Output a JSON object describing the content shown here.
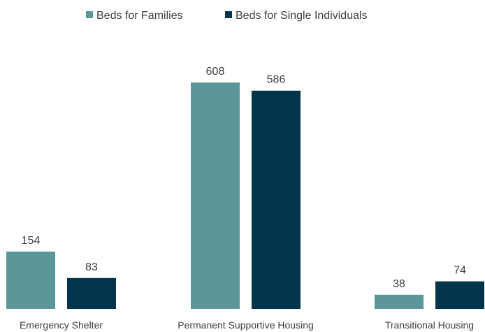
{
  "chart_data": {
    "type": "bar",
    "categories": [
      "Emergency Shelter",
      "Permanent Supportive Housing",
      "Transitional Housing"
    ],
    "series": [
      {
        "name": "Beds for Families",
        "values": [
          154,
          608,
          38
        ],
        "color": "#5b9698"
      },
      {
        "name": "Beds for Single Individuals",
        "values": [
          83,
          586,
          74
        ],
        "color": "#02354b"
      }
    ],
    "title": "",
    "xlabel": "",
    "ylabel": "",
    "ylim": [
      0,
      608
    ],
    "grid": false,
    "legend": "top-center",
    "data_labels": true
  }
}
